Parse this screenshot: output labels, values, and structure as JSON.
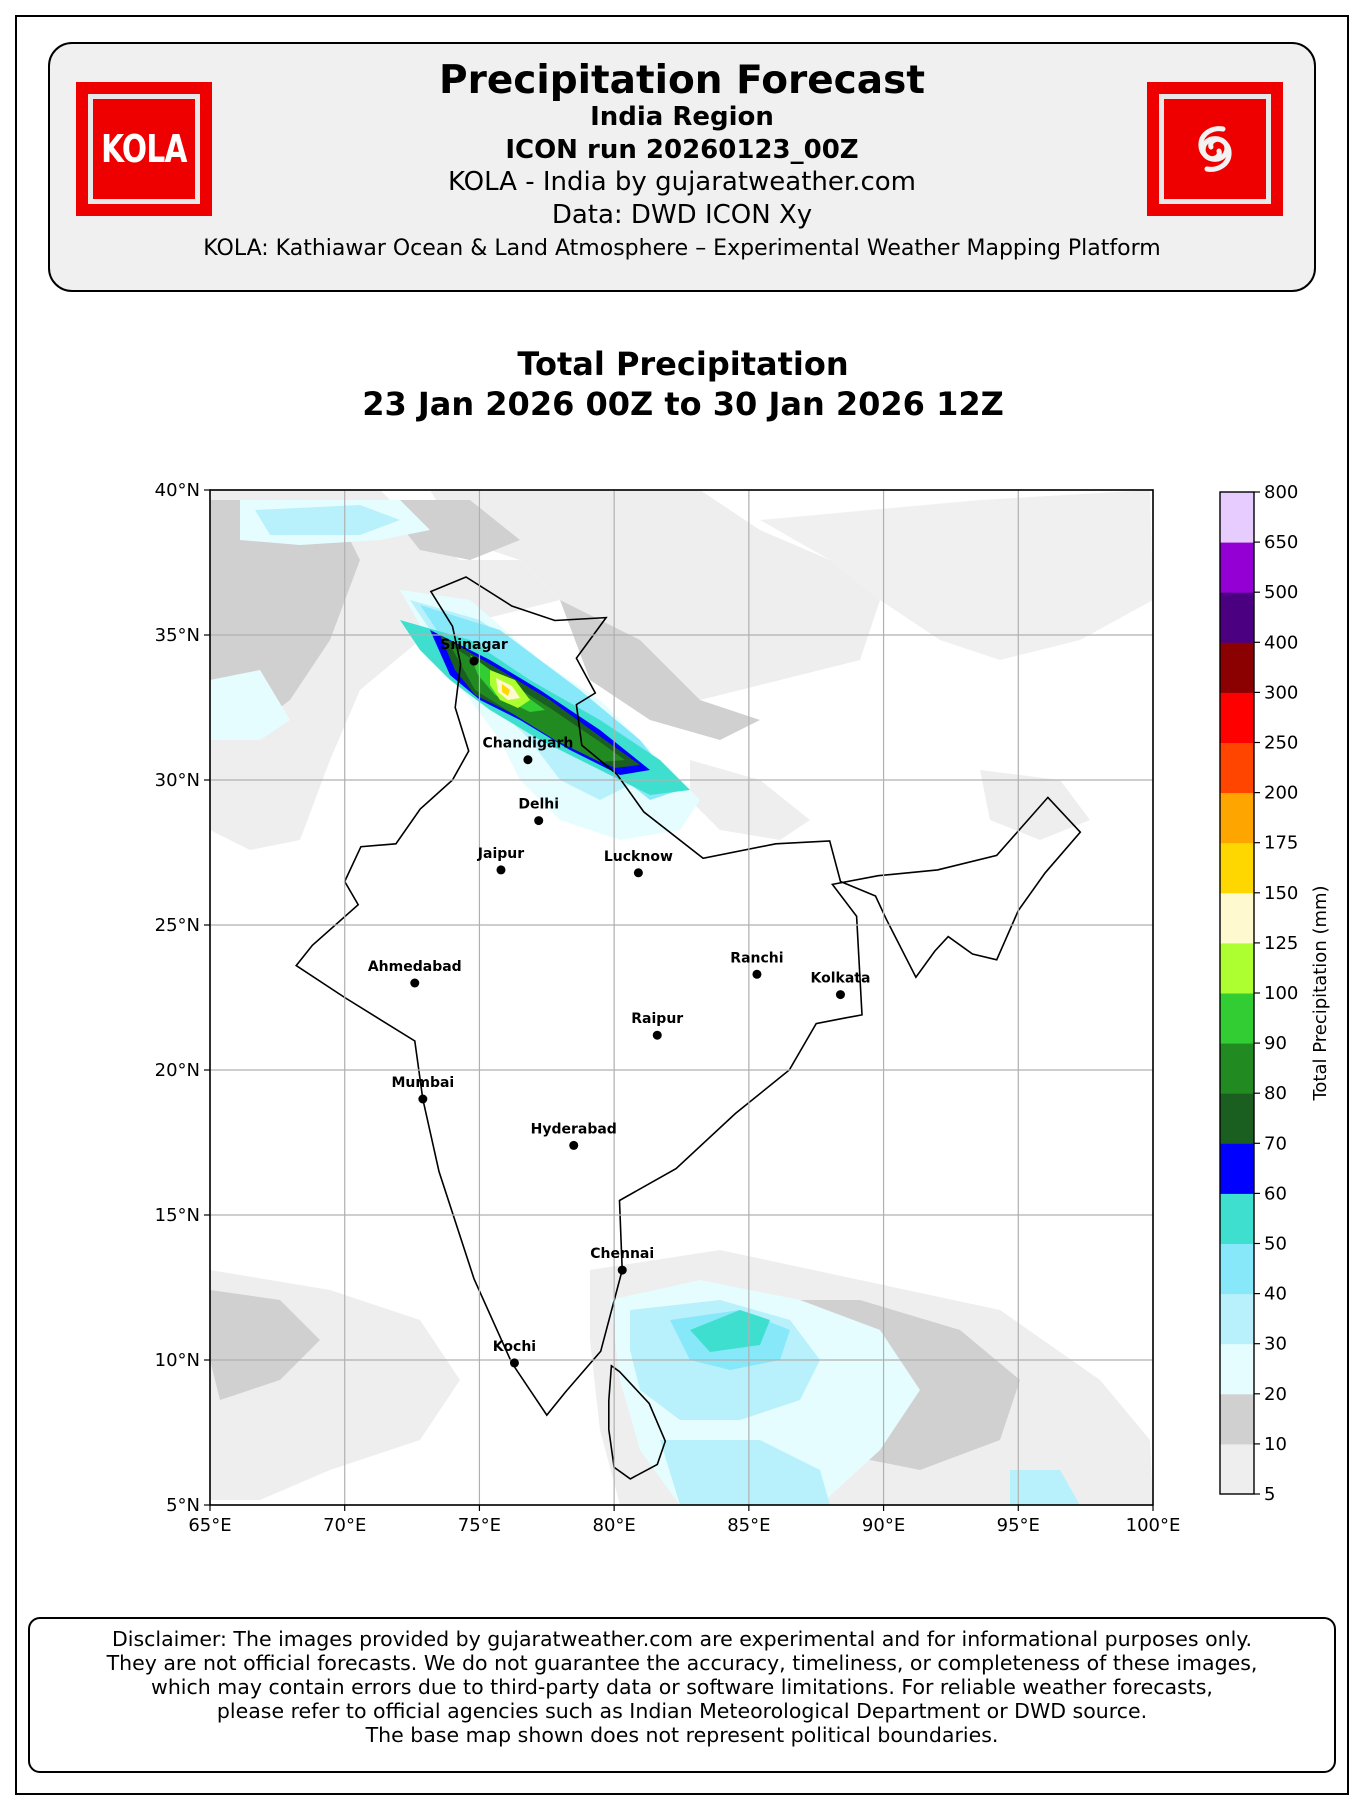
{
  "header": {
    "title": "Precipitation Forecast",
    "region": "India Region",
    "run": "ICON run 20260123_00Z",
    "credit": "KOLA - India by gujaratweather.com",
    "data_source": "Data: DWD ICON Xy",
    "platform": "KOLA: Kathiawar Ocean & Land Atmosphere – Experimental Weather Mapping Platform",
    "logo_left_text": "KOLA",
    "logo_right_icon": "cyclone-icon",
    "logo_color": "#ee0000"
  },
  "plot": {
    "title_line1": "Total Precipitation",
    "title_line2": "23 Jan 2026 00Z to 30 Jan 2026 12Z"
  },
  "map": {
    "projection": "lat-lon",
    "lon_range": [
      65,
      100
    ],
    "lat_range": [
      5,
      40
    ],
    "grid": true,
    "lon_ticks": [
      "65°E",
      "70°E",
      "75°E",
      "80°E",
      "85°E",
      "90°E",
      "95°E",
      "100°E"
    ],
    "lat_ticks": [
      "40°N",
      "35°N",
      "30°N",
      "25°N",
      "20°N",
      "15°N",
      "10°N",
      "5°N"
    ],
    "cities": [
      {
        "name": "Srinagar",
        "lon": 74.8,
        "lat": 34.1
      },
      {
        "name": "Chandigarh",
        "lon": 76.8,
        "lat": 30.7
      },
      {
        "name": "Delhi",
        "lon": 77.2,
        "lat": 28.6
      },
      {
        "name": "Jaipur",
        "lon": 75.8,
        "lat": 26.9
      },
      {
        "name": "Lucknow",
        "lon": 80.9,
        "lat": 26.8
      },
      {
        "name": "Ahmedabad",
        "lon": 72.6,
        "lat": 23.0
      },
      {
        "name": "Ranchi",
        "lon": 85.3,
        "lat": 23.3
      },
      {
        "name": "Kolkata",
        "lon": 88.4,
        "lat": 22.6
      },
      {
        "name": "Raipur",
        "lon": 81.6,
        "lat": 21.2
      },
      {
        "name": "Mumbai",
        "lon": 72.9,
        "lat": 19.0
      },
      {
        "name": "Hyderabad",
        "lon": 78.5,
        "lat": 17.4
      },
      {
        "name": "Chennai",
        "lon": 80.3,
        "lat": 13.1
      },
      {
        "name": "Kochi",
        "lon": 76.3,
        "lat": 9.9
      }
    ]
  },
  "colorbar": {
    "label": "Total Precipitation (mm)",
    "levels": [
      "5",
      "10",
      "20",
      "30",
      "40",
      "50",
      "60",
      "70",
      "80",
      "90",
      "100",
      "125",
      "150",
      "175",
      "200",
      "250",
      "300",
      "400",
      "500",
      "650",
      "800"
    ],
    "colors": [
      "#eeeeee",
      "#d0d0d0",
      "#e6fdff",
      "#b8f1fb",
      "#87e8fa",
      "#3fdfcf",
      "#0000ff",
      "#1a5e20",
      "#218b21",
      "#32cd32",
      "#adff2f",
      "#fff9cf",
      "#ffd700",
      "#ffa500",
      "#ff4500",
      "#ff0000",
      "#8b0000",
      "#4b0082",
      "#9400d3",
      "#e6ccff"
    ]
  },
  "disclaimer": [
    "Disclaimer: The images provided by gujaratweather.com are experimental and for informational purposes only.",
    "They are not official forecasts. We do not guarantee the accuracy, timeliness, or completeness of these images,",
    "which may contain errors due to third-party data or software limitations. For reliable weather forecasts,",
    "please refer to official agencies such as Indian Meteorological Department or DWD source.",
    "The base map shown does not represent political boundaries."
  ]
}
